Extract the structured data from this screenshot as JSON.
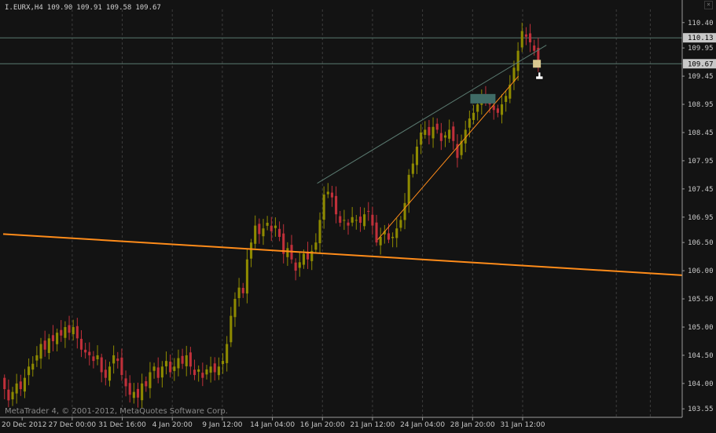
{
  "header": {
    "symbol": "I.EURX,H4",
    "open": "109.90",
    "high": "109.91",
    "low": "109.58",
    "close": "109.67"
  },
  "copyright": "MetaTrader 4, © 2001-2012, MetaQuotes Software Corp.",
  "colors": {
    "background": "#131313",
    "bull_candle": "#8e8a00",
    "bear_candle": "#c0303a",
    "grid": "#3c3c3c",
    "trendline_orange": "#ff8c1a",
    "channel_line": "#5a7a70",
    "axis_text": "#c8c8c8",
    "price_label_bg": "#c8c8c8"
  },
  "icons": {
    "close": "close-icon",
    "cursor": "hand-cursor-icon"
  },
  "chart_data": {
    "type": "candlestick",
    "timeframe": "H4",
    "ylim": [
      103.4,
      110.55
    ],
    "price_ticks": [
      "110.40",
      "109.95",
      "109.45",
      "108.95",
      "108.45",
      "107.95",
      "107.45",
      "106.95",
      "106.50",
      "106.00",
      "105.50",
      "105.00",
      "104.50",
      "104.00",
      "103.55"
    ],
    "highlighted_prices": [
      "110.13",
      "109.67"
    ],
    "time_ticks": [
      "20 Dec 2012",
      "27 Dec 00:00",
      "31 Dec 16:00",
      "4 Jan 20:00",
      "9 Jan 12:00",
      "14 Jan 04:00",
      "16 Jan 20:00",
      "21 Jan 12:00",
      "24 Jan 04:00",
      "28 Jan 20:00",
      "31 Jan 12:00"
    ],
    "closes": [
      103.9,
      103.7,
      103.85,
      104.0,
      103.9,
      104.1,
      104.3,
      104.35,
      104.5,
      104.7,
      104.6,
      104.8,
      104.75,
      104.9,
      104.85,
      105.0,
      104.9,
      105.0,
      104.8,
      104.6,
      104.55,
      104.5,
      104.4,
      104.5,
      104.2,
      104.1,
      104.3,
      104.5,
      104.4,
      104.15,
      103.95,
      103.8,
      103.85,
      103.75,
      104.0,
      103.95,
      104.2,
      104.3,
      104.1,
      104.3,
      104.4,
      104.2,
      104.3,
      104.45,
      104.35,
      104.5,
      104.3,
      104.15,
      104.25,
      104.1,
      104.25,
      104.3,
      104.2,
      104.3,
      104.4,
      104.7,
      105.2,
      105.5,
      105.7,
      105.6,
      106.2,
      106.5,
      106.8,
      106.65,
      106.75,
      106.85,
      106.7,
      106.8,
      106.6,
      106.3,
      106.4,
      106.2,
      106.0,
      106.15,
      106.3,
      106.2,
      106.35,
      106.5,
      106.9,
      107.35,
      107.4,
      107.3,
      107.0,
      106.85,
      106.9,
      106.8,
      106.95,
      106.9,
      106.85,
      107.0,
      107.05,
      106.8,
      106.5,
      106.6,
      106.7,
      106.55,
      106.6,
      106.75,
      106.9,
      107.2,
      107.7,
      107.9,
      108.2,
      108.45,
      108.5,
      108.4,
      108.55,
      108.5,
      108.3,
      108.4,
      108.5,
      108.3,
      108.0,
      108.3,
      108.5,
      108.7,
      108.8,
      108.95,
      109.1,
      109.0,
      108.95,
      108.85,
      108.8,
      108.95,
      109.1,
      109.3,
      109.6,
      109.9,
      110.25,
      110.15,
      110.05,
      109.9,
      109.67
    ],
    "horizontal_lines": [
      110.13,
      109.67
    ],
    "trendlines": [
      {
        "name": "support-long",
        "from": [
          0,
          106.65
        ],
        "to": [
          1,
          105.92
        ],
        "color": "orange"
      },
      {
        "name": "rising-trend",
        "from": [
          0.5515,
          106.55
        ],
        "to": [
          0.7588,
          109.45
        ],
        "color": "orange"
      },
      {
        "name": "channel-upper",
        "from": [
          0.4625,
          107.55
        ],
        "to": [
          0.8,
          110.0
        ],
        "color": "channel"
      }
    ]
  }
}
